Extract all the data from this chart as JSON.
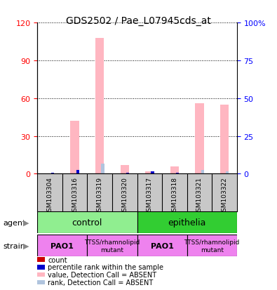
{
  "title": "GDS2502 / Pae_L07945cds_at",
  "samples": [
    "GSM103304",
    "GSM103316",
    "GSM103319",
    "GSM103320",
    "GSM103317",
    "GSM103318",
    "GSM103321",
    "GSM103322"
  ],
  "value_absent": [
    0,
    42,
    108,
    7,
    2,
    6,
    56,
    55
  ],
  "rank_absent": [
    0,
    0,
    8,
    0,
    0,
    0,
    3,
    2
  ],
  "count_values": [
    0,
    0,
    0,
    0,
    0,
    0,
    0,
    0
  ],
  "rank_values": [
    1,
    3,
    0,
    1,
    2,
    1,
    0,
    0
  ],
  "ylim_left": [
    0,
    120
  ],
  "ylim_right": [
    0,
    100
  ],
  "yticks_left": [
    0,
    30,
    60,
    90,
    120
  ],
  "ytick_labels_left": [
    "0",
    "30",
    "60",
    "90",
    "120"
  ],
  "yticks_right": [
    0,
    25,
    50,
    75,
    100
  ],
  "ytick_labels_right": [
    "0",
    "25",
    "50",
    "75",
    "100%"
  ],
  "bar_width": 0.35,
  "small_bar_width": 0.12,
  "agent_color_control": "#90ee90",
  "agent_color_epithelia": "#32cd32",
  "strain_pao1_color": "#ee82ee",
  "strain_mutant_color": "#ee82ee",
  "color_count": "#cc0000",
  "color_rank": "#0000cc",
  "color_value_absent": "#ffb6c1",
  "color_rank_absent": "#b0c4de",
  "agent_label": "agent",
  "strain_label": "strain",
  "legend_items": [
    {
      "color": "#cc0000",
      "label": "count"
    },
    {
      "color": "#0000cc",
      "label": "percentile rank within the sample"
    },
    {
      "color": "#ffb6c1",
      "label": "value, Detection Call = ABSENT"
    },
    {
      "color": "#b0c4de",
      "label": "rank, Detection Call = ABSENT"
    }
  ]
}
